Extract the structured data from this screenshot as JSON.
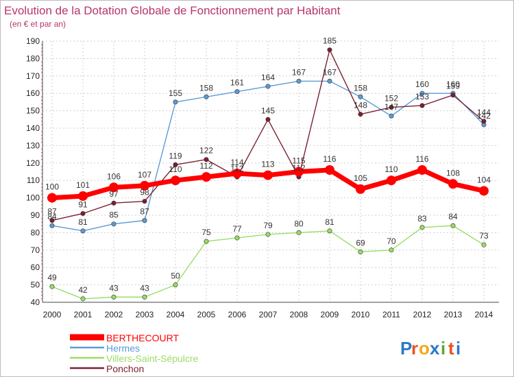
{
  "chart_data": {
    "type": "line",
    "title": "Evolution de la Dotation Globale de Fonctionnement par Habitant",
    "subtitle": "(en € et par an)",
    "xlabel": "",
    "ylabel": "",
    "x": [
      "2000",
      "2001",
      "2002",
      "2003",
      "2004",
      "2005",
      "2006",
      "2007",
      "2008",
      "2009",
      "2010",
      "2011",
      "2012",
      "2013",
      "2014"
    ],
    "ylim": [
      40,
      190
    ],
    "yticks": [
      "40",
      "50",
      "60",
      "70",
      "80",
      "90",
      "100",
      "110",
      "120",
      "130",
      "140",
      "150",
      "160",
      "170",
      "180",
      "190"
    ],
    "grid": true,
    "legend_position": "bottom-left",
    "series": [
      {
        "name": "BERTHECOURT",
        "color": "#ff0000",
        "values": [
          100,
          101,
          106,
          107,
          110,
          112,
          114,
          113,
          115,
          116,
          105,
          110,
          116,
          108,
          104
        ],
        "labels": [
          "100",
          "101",
          "106",
          "107",
          "110",
          "112",
          "114",
          "113",
          "115",
          "116",
          "105",
          "110",
          "116",
          "108",
          "104"
        ]
      },
      {
        "name": "Hermes",
        "color": "#5b9bd5",
        "values": [
          84,
          81,
          85,
          87,
          155,
          158,
          161,
          164,
          167,
          167,
          158,
          147,
          160,
          160,
          142
        ],
        "labels": [
          "84",
          "81",
          "85",
          "87",
          "155",
          "158",
          "161",
          "164",
          "167",
          "167",
          "158",
          "147",
          "160",
          "160",
          "142"
        ]
      },
      {
        "name": "Villers-Saint-Sépulcre",
        "color": "#99dd66",
        "values": [
          49,
          42,
          43,
          43,
          50,
          75,
          77,
          79,
          80,
          81,
          69,
          70,
          83,
          84,
          73
        ],
        "labels": [
          "49",
          "42",
          "43",
          "43",
          "50",
          "75",
          "77",
          "79",
          "80",
          "81",
          "69",
          "70",
          "83",
          "84",
          "73"
        ]
      },
      {
        "name": "Ponchon",
        "color": "#7a2030",
        "values": [
          87,
          91,
          97,
          98,
          119,
          122,
          112,
          145,
          112,
          185,
          148,
          152,
          153,
          159,
          144
        ],
        "labels": [
          "87",
          "91",
          "97",
          "98",
          "119",
          "122",
          "112",
          "145",
          "112",
          "185",
          "148",
          "152",
          "153",
          "159",
          "144"
        ]
      }
    ]
  },
  "logo": {
    "letters": [
      "P",
      "r",
      "o",
      "x",
      "i",
      "t",
      "i"
    ],
    "colors": [
      "#2a78c8",
      "#e8521a",
      "#f2a81d",
      "#2a78c8",
      "#5aaa2d",
      "#e8521a",
      "#2a78c8"
    ]
  }
}
